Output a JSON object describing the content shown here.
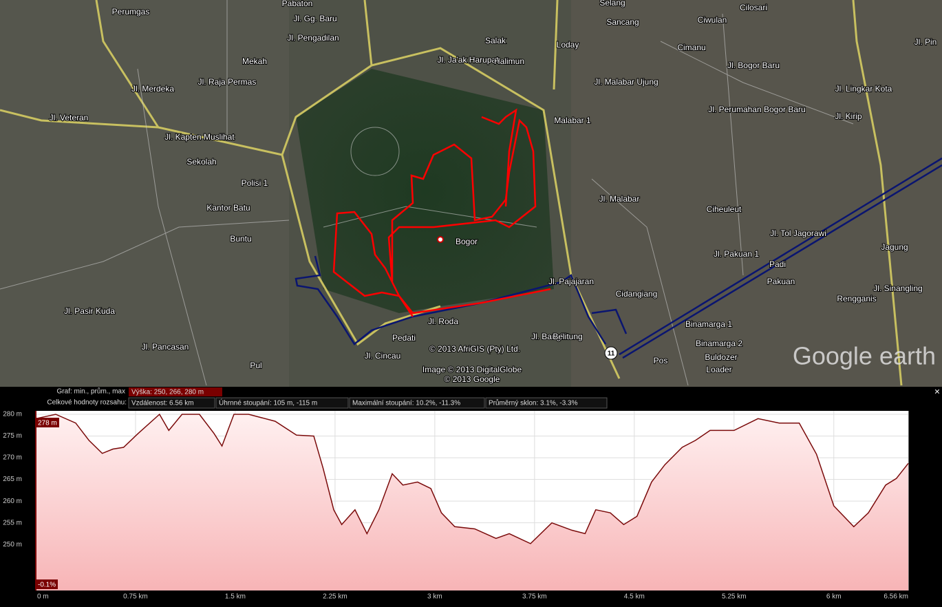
{
  "map": {
    "labels": [
      "Perumgas",
      "Pabaton",
      "Jl. Gg. Baru",
      "Jl. Pengadilan",
      "Mekah",
      "Jl. Ja'ak Harupat",
      "Salak",
      "Halimun",
      "Loday",
      "Sancang",
      "Selang",
      "Ciwulan",
      "Cilosari",
      "Jl. Bogor Baru",
      "Jl. Veteran",
      "Jl. Kapten Muslihat",
      "Sekolah",
      "Polisi 1",
      "Kantor Batu",
      "Buntu",
      "Jl. Merdeka",
      "Jl. Raja Permas",
      "Malabar 1",
      "Jl. Malabar Ujung",
      "Cimanu",
      "Jl. Perumahan Bogor Baru",
      "Jl. Malabar",
      "Ciheuleut",
      "Bogor",
      "Jl. Pajajaran",
      "Cidangiang",
      "Jl. Pakuan 1",
      "Jl. Tol Jagorawi",
      "Padi",
      "Pakuan",
      "Rengganis",
      "Jagung",
      "Binamarga 1",
      "Binamarga 2",
      "Buldozer",
      "Loader",
      "Pos",
      "Jl. Pasir Kuda",
      "Jl. Pancasan",
      "Pul",
      "Jl. Cincau",
      "Pedati",
      "Jl. Roda",
      "Jl. Bangka",
      "Belitung",
      "Jl. Pin",
      "Jl. Lingkar Kota",
      "Jl. Sinangling",
      "Jl. Kirip"
    ],
    "copyright": [
      "© 2013 AfriGIS (Pty) Ltd.",
      "Image © 2013 DigitalGlobe",
      "© 2013 Google"
    ],
    "logo": "Google earth",
    "shield": "11"
  },
  "panel": {
    "summary_label": "Graf: min., prům., max",
    "summary": "Výška: 250, 266, 280 m",
    "totals_label": "Celkové hodnoty rozsahu:",
    "stats": [
      "Vzdálenost: 6.56 km",
      "Úhrnné stoupání: 105 m, -115 m",
      "Maximální stoupání: 10.2%, -11.3%",
      "Průměrný sklon: 3.1%, -3.3%"
    ],
    "cursor_elevation": "278 m",
    "cursor_slope": "-0.1%",
    "close": "×"
  },
  "chart_data": {
    "type": "line",
    "color": "#7a0a0a",
    "grid": true,
    "x": [
      0,
      0.15,
      0.3,
      0.4,
      0.5,
      0.58,
      0.66,
      0.77,
      0.93,
      1.0,
      1.1,
      1.23,
      1.34,
      1.4,
      1.49,
      1.6,
      1.8,
      1.96,
      2.09,
      2.16,
      2.24,
      2.3,
      2.4,
      2.49,
      2.58,
      2.68,
      2.76,
      2.87,
      2.97,
      3.05,
      3.15,
      3.3,
      3.46,
      3.56,
      3.72,
      3.88,
      4.03,
      4.13,
      4.21,
      4.32,
      4.42,
      4.52,
      4.63,
      4.73,
      4.86,
      4.96,
      5.07,
      5.25,
      5.43,
      5.59,
      5.74,
      5.87,
      6.0,
      6.15,
      6.26,
      6.39,
      6.47,
      6.56
    ],
    "values": [
      279,
      280,
      278,
      274,
      271,
      272,
      272.4,
      275.6,
      280,
      276.3,
      280,
      280,
      275.6,
      272.7,
      280,
      280,
      278.4,
      275.2,
      275,
      267.6,
      258,
      254.6,
      258,
      252.5,
      258,
      266.3,
      263.7,
      264.4,
      262.9,
      257.3,
      254.1,
      253.6,
      251.4,
      252.5,
      250.2,
      255,
      253.3,
      252.5,
      258,
      257.3,
      254.6,
      256.5,
      264.4,
      268.4,
      272.4,
      274,
      276.3,
      276.3,
      279,
      278,
      278,
      270.8,
      258.9,
      254.1,
      257.3,
      263.7,
      265.2,
      268.7
    ],
    "xlim": [
      0,
      6.56
    ],
    "xticks": [
      {
        "value": 0,
        "label": "0 m"
      },
      {
        "value": 0.75,
        "label": "0.75 km"
      },
      {
        "value": 1.5,
        "label": "1.5 km"
      },
      {
        "value": 2.25,
        "label": "2.25 km"
      },
      {
        "value": 3,
        "label": "3 km"
      },
      {
        "value": 3.75,
        "label": "3.75 km"
      },
      {
        "value": 4.5,
        "label": "4.5 km"
      },
      {
        "value": 5.25,
        "label": "5.25 km"
      },
      {
        "value": 6,
        "label": "6 km"
      },
      {
        "value": 6.56,
        "label": "6.56 km"
      }
    ],
    "ylim": [
      239.4,
      280.8
    ],
    "yticks": [
      {
        "value": 250,
        "label": "250 m"
      },
      {
        "value": 255,
        "label": "255 m"
      },
      {
        "value": 260,
        "label": "260 m"
      },
      {
        "value": 265,
        "label": "265 m"
      },
      {
        "value": 270,
        "label": "270 m"
      },
      {
        "value": 275,
        "label": "275 m"
      },
      {
        "value": 280,
        "label": "280 m"
      }
    ]
  }
}
